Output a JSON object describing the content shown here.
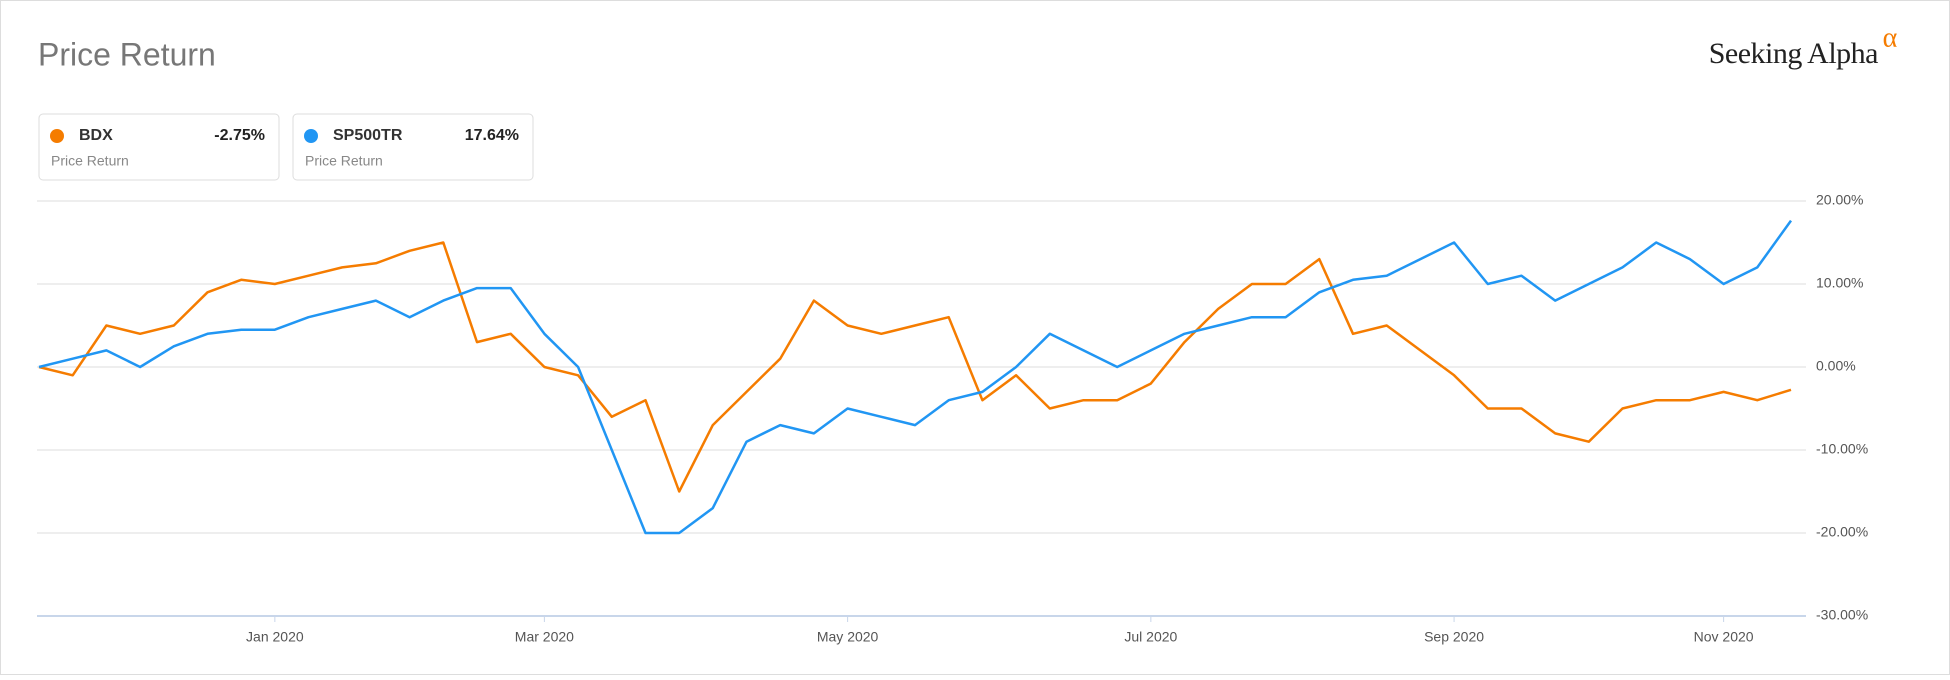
{
  "chart_data": {
    "type": "line",
    "title": "Price Return",
    "brand": "Seeking Alpha",
    "brand_mark": "α",
    "categories": [
      null,
      null,
      null,
      null,
      null,
      null,
      null,
      "Jan 2020",
      null,
      null,
      null,
      null,
      null,
      null,
      null,
      "Mar 2020",
      null,
      null,
      null,
      null,
      null,
      null,
      null,
      null,
      "May 2020",
      null,
      null,
      null,
      null,
      null,
      null,
      null,
      null,
      "Jul 2020",
      null,
      null,
      null,
      null,
      null,
      null,
      null,
      null,
      "Sep 2020",
      null,
      null,
      null,
      null,
      null,
      null,
      null,
      "Nov 2020",
      null,
      null
    ],
    "series": [
      {
        "name": "BDX",
        "color": "#f57c00",
        "legend_value": "-2.75%",
        "legend_subtitle": "Price Return",
        "values": [
          0,
          -1,
          5,
          4,
          5,
          9,
          10.5,
          10,
          11,
          12,
          12.5,
          14,
          15,
          3,
          4,
          0,
          -1,
          -6,
          -4,
          -15,
          -7,
          -3,
          1,
          8,
          5,
          4,
          5,
          6,
          -4,
          -1,
          -5,
          -4,
          -4,
          -2,
          3,
          7,
          10,
          10,
          13,
          4,
          5,
          2,
          -1,
          -5,
          -5,
          -8,
          -9,
          -5,
          -4,
          -4,
          -3,
          -4,
          -2.75
        ]
      },
      {
        "name": "SP500TR",
        "color": "#2196f3",
        "legend_value": "17.64%",
        "legend_subtitle": "Price Return",
        "values": [
          0,
          1,
          2,
          0,
          2.5,
          4,
          4.5,
          4.5,
          6,
          7,
          8,
          6,
          8,
          9.5,
          9.5,
          4,
          0,
          -10,
          -20,
          -20,
          -17,
          -9,
          -7,
          -8,
          -5,
          -6,
          -7,
          -4,
          -3,
          0,
          4,
          2,
          0,
          2,
          4,
          5,
          6,
          6,
          9,
          10.5,
          11,
          13,
          15,
          10,
          11,
          8,
          10,
          12,
          15,
          13,
          10,
          12,
          17.64
        ]
      }
    ],
    "ylim": [
      -30,
      20
    ],
    "yticks": [
      {
        "value": -30,
        "label": "-30.00%"
      },
      {
        "value": -20,
        "label": "-20.00%"
      },
      {
        "value": -10,
        "label": "-10.00%"
      },
      {
        "value": 0,
        "label": "0.00%"
      },
      {
        "value": 10,
        "label": "10.00%"
      },
      {
        "value": 20,
        "label": "20.00%"
      }
    ],
    "grid": true
  }
}
